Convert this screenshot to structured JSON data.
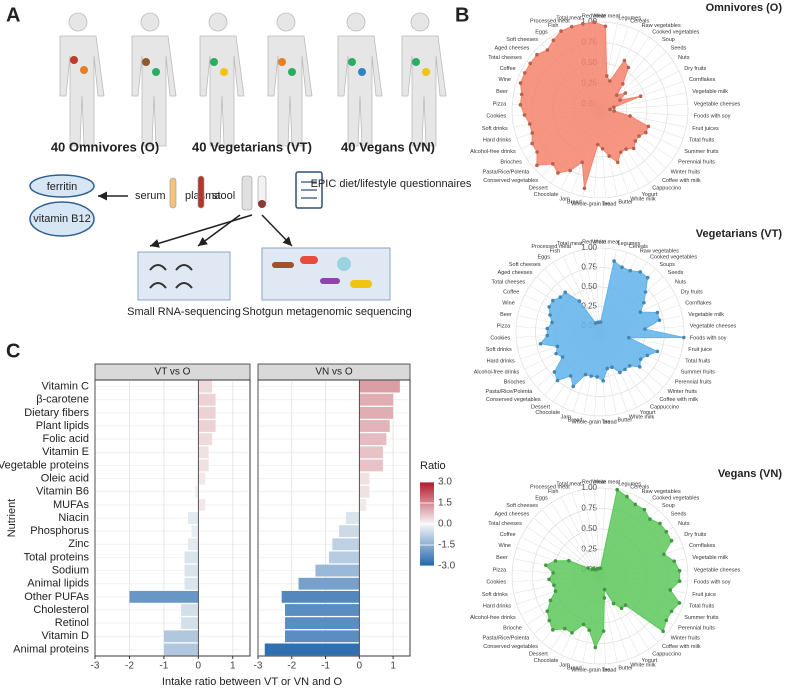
{
  "panel_labels": [
    "A",
    "B",
    "C"
  ],
  "diagram": {
    "groups": [
      "40 Omnivores (O)",
      "40 Vegetarians (VT)",
      "40 Vegans (VN)"
    ],
    "blood_markers": [
      "ferritin",
      "vitamin B12"
    ],
    "samples": [
      "serum",
      "plasma",
      "stool"
    ],
    "questionnaire": "EPIC diet/lifestyle questionnaires",
    "methods": [
      "Small RNA-sequencing",
      "Shotgun metagenomic sequencing"
    ]
  },
  "chart_data": [
    {
      "type": "radar",
      "title": "Omnivores (O)",
      "color": "#f4826b",
      "categories": [
        "Red meat",
        "White meat",
        "Legumes",
        "Cereals",
        "Raw vegetables",
        "Cooked vegetables",
        "Soup",
        "Seeds",
        "Nuts",
        "Dry fruits",
        "Cornflakes",
        "Vegetable milk",
        "Vegetable cheeses",
        "Foods with soy",
        "Fruit juices",
        "Total fruits",
        "Summer fruits",
        "Perennial fruits",
        "Winter fruits",
        "Coffee with milk",
        "Cappuccino",
        "Yogurt",
        "White milk",
        "Butter",
        "Tea",
        "Whole-grain bread",
        "Bread",
        "Jam",
        "Chocolate",
        "Dessert",
        "Conserved vegetables",
        "Pasta/Rice/Polenta",
        "Brioches",
        "Alcohol-free drinks",
        "Hard drinks",
        "Soft drinks",
        "Cookies",
        "Pizza",
        "Beer",
        "Wine",
        "Coffee",
        "Total cheeses",
        "Aged cheeses",
        "Soft cheeses",
        "Eggs",
        "Fish",
        "Processed meat",
        "Total meat"
      ],
      "values": [
        1,
        0.95,
        0.35,
        0.3,
        0.6,
        0.55,
        0.35,
        0.2,
        0.3,
        0.2,
        0.45,
        0.1,
        0.05,
        0.1,
        0.3,
        0.55,
        0.55,
        0.5,
        0.5,
        0.55,
        0.5,
        0.5,
        0.6,
        0.5,
        0.4,
        0.35,
        0.9,
        0.6,
        0.75,
        0.85,
        0.8,
        0.95,
        0.85,
        0.85,
        0.8,
        0.8,
        0.85,
        0.9,
        0.9,
        0.95,
        0.95,
        0.95,
        0.95,
        0.9,
        0.95,
        1,
        1,
        1
      ],
      "ylim": [
        0,
        1
      ],
      "yticks": [
        {
          "value": 0,
          "label": "0.00"
        },
        0.25,
        {
          "value": 0.5,
          "label": "0.50"
        },
        0.75,
        {
          "value": 1,
          "label": "1.00"
        }
      ]
    },
    {
      "type": "radar",
      "title": "Vegetarians (VT)",
      "color": "#5fb3ec",
      "categories": [
        "Red meat",
        "White meat",
        "Legumes",
        "Cereals",
        "Raw vegetables",
        "Cooked vegetables",
        "Soups",
        "Seeds",
        "Nuts",
        "Dry fruits",
        "Cornflakes",
        "Vegetable milk",
        "Vegetable cheeses",
        "Foods with soy",
        "Fruit juice",
        "Total fruits",
        "Summer fruits",
        "Perennial fruits",
        "Winter fruits",
        "Coffee with milk",
        "Cappuccino",
        "Yogurt",
        "White milk",
        "Butter",
        "Tea",
        "Whole-grain bread",
        "Bread",
        "Jam",
        "Chocolate",
        "Dessert",
        "Conserved vegetables",
        "Pasta/Rice/Polenta",
        "Brioches",
        "Alcohol-free drinks",
        "Hard drinks",
        "Soft drinks",
        "Cookies",
        "Pizza",
        "Beer",
        "Wine",
        "Coffee",
        "Total cheeses",
        "Aged cheeses",
        "Soft cheeses",
        "Eggs",
        "Fish",
        "Processed meat",
        "Total meat"
      ],
      "values": [
        0.05,
        0.05,
        0.85,
        0.8,
        0.8,
        0.85,
        0.85,
        0.7,
        0.6,
        0.5,
        0.7,
        0.7,
        0.5,
        1,
        0.3,
        0.7,
        0.6,
        0.55,
        0.6,
        0.5,
        0.5,
        0.5,
        0.4,
        0.4,
        0.55,
        0.5,
        0.5,
        0.5,
        0.7,
        0.6,
        0.75,
        0.7,
        0.5,
        0.55,
        0.5,
        0.7,
        0.6,
        0.6,
        0.55,
        0.6,
        0.65,
        0.65,
        0.6,
        0.6,
        0.4,
        0.05,
        0.05,
        0.05
      ],
      "ylim": [
        0,
        1
      ],
      "yticks": [
        {
          "value": 0,
          "label": "0.00"
        },
        0.25,
        {
          "value": 0.5,
          "label": "0.50"
        },
        0.75,
        {
          "value": 1,
          "label": "1.00"
        }
      ]
    },
    {
      "type": "radar",
      "title": "Vegans (VN)",
      "color": "#5cc85a",
      "categories": [
        "Red meat",
        "White meat",
        "Legumes",
        "Cereals",
        "Raw vegetables",
        "Cooked vegetables",
        "Soup",
        "Seeds",
        "Nuts",
        "Dry fruits",
        "Cornflakes",
        "Vegetable milk",
        "Vegetable cheeses",
        "Foods with soy",
        "Fruit juice",
        "Total fruits",
        "Summer fruits",
        "Perennial fruits",
        "Winter fruits",
        "Coffee with milk",
        "Cappuccino",
        "Yogurt",
        "White milk",
        "Butter",
        "Tea",
        "Whole-grain bread",
        "Bread",
        "Jam",
        "Chocolate",
        "Dessert",
        "Conserved vegetables",
        "Pasta/Rice/Polenta",
        "Brioche",
        "Alcohol-free drinks",
        "Hard drinks",
        "Soft drinks",
        "Cookies",
        "Pizza",
        "Beer",
        "Wine",
        "Coffee",
        "Total cheeses",
        "Aged cheeses",
        "Soft cheeses",
        "Eggs",
        "Fish",
        "Processed meat",
        "Total meat"
      ],
      "values": [
        0.02,
        0.02,
        1,
        0.95,
        0.9,
        0.9,
        0.85,
        0.9,
        0.9,
        0.9,
        0.75,
        0.85,
        0.9,
        0.9,
        0.8,
        0.95,
        0.9,
        0.9,
        0.95,
        0.4,
        0.4,
        0.3,
        0.1,
        0.2,
        0.6,
        0.8,
        0.6,
        0.55,
        0.7,
        0.7,
        0.8,
        0.75,
        0.7,
        0.6,
        0.5,
        0.5,
        0.55,
        0.5,
        0.6,
        0.5,
        0.35,
        0.1,
        0.05,
        0.05,
        0.02,
        0.02,
        0.02,
        0.02
      ],
      "ylim": [
        0,
        1
      ],
      "yticks": [
        {
          "value": 0,
          "label": "0.00"
        },
        0.25,
        {
          "value": 0.5,
          "label": "0.50"
        },
        0.75,
        {
          "value": 1,
          "label": "1.00"
        }
      ]
    },
    {
      "type": "hbar",
      "title": "VT vs O",
      "y_label": "Nutrient",
      "x_label": "Intake ratio between VT or VN and O",
      "categories": [
        "Vitamin C",
        "β-carotene",
        "Dietary fibers",
        "Plant lipids",
        "Folic acid",
        "Vitamin E",
        "Vegetable proteins",
        "Oleic acid",
        "Vitamin B6",
        "MUFAs",
        "Niacin",
        "Phosphorus",
        "Zinc",
        "Total proteins",
        "Sodium",
        "Animal lipids",
        "Other PUFAs",
        "Cholesterol",
        "Retinol",
        "Vitamin D",
        "Animal proteins"
      ],
      "values": [
        0.4,
        0.5,
        0.5,
        0.5,
        0.4,
        0.3,
        0.3,
        0.2,
        -0.1,
        0.2,
        -0.3,
        -0.2,
        -0.3,
        -0.4,
        -0.4,
        -0.4,
        -2.0,
        -0.5,
        -0.5,
        -1.0,
        -1.0
      ],
      "xlim": [
        -3,
        1.5
      ],
      "xticks": [
        -3,
        -2,
        -1,
        0,
        1
      ],
      "grid": true
    },
    {
      "type": "hbar",
      "title": "VN vs O",
      "categories": [
        "Vitamin C",
        "β-carotene",
        "Dietary fibers",
        "Plant lipids",
        "Folic acid",
        "Vitamin E",
        "Vegetable proteins",
        "Oleic acid",
        "Vitamin B6",
        "MUFAs",
        "Niacin",
        "Phosphorus",
        "Zinc",
        "Total proteins",
        "Sodium",
        "Animal lipids",
        "Other PUFAs",
        "Cholesterol",
        "Retinol",
        "Vitamin D",
        "Animal proteins"
      ],
      "values": [
        1.2,
        1.0,
        1.0,
        0.9,
        0.8,
        0.7,
        0.7,
        0.3,
        0.3,
        0.2,
        -0.4,
        -0.6,
        -0.8,
        -0.9,
        -1.3,
        -1.8,
        -2.3,
        -2.2,
        -2.2,
        -2.2,
        -2.8
      ],
      "xlim": [
        -3,
        1.5
      ],
      "xticks": [
        -3,
        -2,
        -1,
        0,
        1
      ],
      "grid": true,
      "legend_title": "Ratio",
      "colorscale": [
        "#2166ac",
        "#f7f7f7",
        "#b2182b"
      ],
      "clim": [
        -3,
        3
      ],
      "legend_ticks": [
        {
          "value": 3,
          "label": "3.0"
        },
        {
          "value": 1.5,
          "label": "1.5"
        },
        {
          "value": 0,
          "label": "0.0"
        },
        {
          "value": -1.5,
          "label": "-1.5"
        },
        {
          "value": -3,
          "label": "-3.0"
        }
      ]
    }
  ]
}
